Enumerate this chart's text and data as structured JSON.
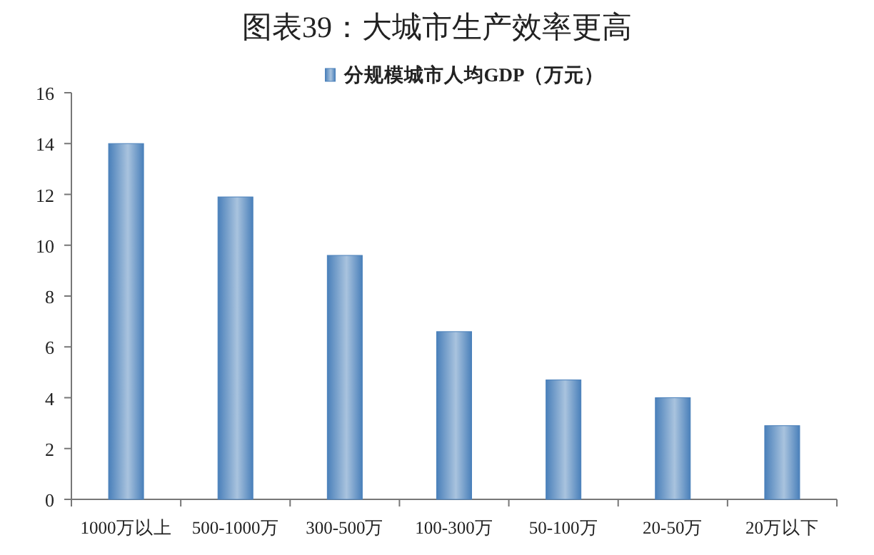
{
  "chart_data": {
    "type": "bar",
    "title": "图表39：大城市生产效率更高",
    "categories": [
      "1000万以上",
      "500-1000万",
      "300-500万",
      "100-300万",
      "50-100万",
      "20-50万",
      "20万以下"
    ],
    "series": [
      {
        "name": "分规模城市人均GDP（万元）",
        "color": "#4a80ba",
        "values": [
          14.0,
          11.9,
          9.6,
          6.6,
          4.7,
          4.0,
          2.9
        ]
      }
    ],
    "ylim": [
      0,
      16
    ],
    "yticks": [
      0,
      2,
      4,
      6,
      8,
      10,
      12,
      14,
      16
    ],
    "grid": false,
    "legend": "top"
  }
}
